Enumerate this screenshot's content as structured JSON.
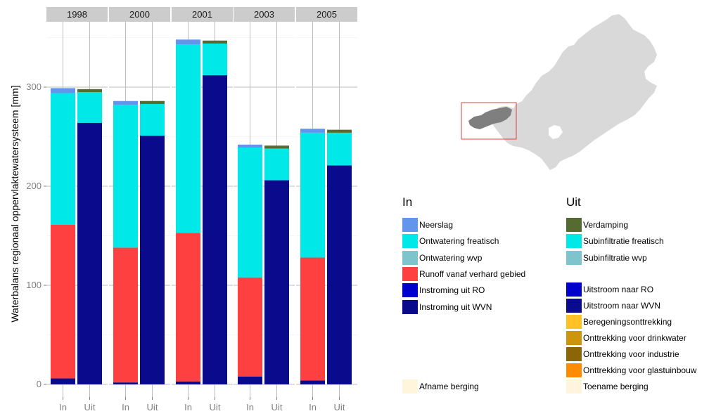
{
  "chart_data": {
    "type": "bar",
    "stacked": true,
    "facets": [
      "1998",
      "2000",
      "2001",
      "2003",
      "2005"
    ],
    "categories": [
      "In",
      "Uit"
    ],
    "ylabel": "Waterbalans regionaal oppervlaktewatersysteem [mm]",
    "xlabel": "",
    "yticks": [
      0,
      100,
      200,
      300
    ],
    "ylim": [
      0,
      360
    ],
    "grid": true,
    "legend_placement": "right",
    "in_series": [
      {
        "name": "Instroming uit WVN",
        "color": "#0a0a8c",
        "values": [
          6,
          2,
          3,
          8,
          4
        ]
      },
      {
        "name": "Instroming uit RO",
        "color": "#0000cc",
        "values": [
          0,
          0,
          0,
          0,
          0
        ]
      },
      {
        "name": "Runoff vanaf verhard gebied",
        "color": "#ff4040",
        "values": [
          155,
          136,
          150,
          100,
          124
        ]
      },
      {
        "name": "Ontwatering wvp",
        "color": "#7ec4cc",
        "values": [
          0,
          0,
          0,
          0,
          0
        ]
      },
      {
        "name": "Ontwatering freatisch",
        "color": "#00e8e8",
        "values": [
          133,
          144,
          190,
          131,
          126
        ]
      },
      {
        "name": "Neerslag",
        "color": "#6495ed",
        "values": [
          5,
          4,
          5,
          3,
          4
        ]
      }
    ],
    "uit_series": [
      {
        "name": "Toename berging",
        "color": "#fff5dc",
        "values": [
          0,
          0,
          0,
          0,
          0
        ]
      },
      {
        "name": "Onttrekking voor glastuinbouw",
        "color": "#ff8c00",
        "values": [
          0,
          0,
          0,
          0,
          0
        ]
      },
      {
        "name": "Onttrekking voor industrie",
        "color": "#8b6508",
        "values": [
          0,
          0,
          0,
          0,
          0
        ]
      },
      {
        "name": "Onttrekking voor drinkwater",
        "color": "#cd950c",
        "values": [
          0,
          0,
          0,
          0,
          0
        ]
      },
      {
        "name": "Beregeningsonttrekking",
        "color": "#ffc125",
        "values": [
          0,
          0,
          0,
          0,
          0
        ]
      },
      {
        "name": "Uitstroom naar WVN",
        "color": "#0a0a8c",
        "values": [
          264,
          251,
          312,
          206,
          221
        ]
      },
      {
        "name": "Uitstroom naar RO",
        "color": "#0000cc",
        "values": [
          0,
          0,
          0,
          0,
          0
        ]
      },
      {
        "name": "Subinfiltratie wvp",
        "color": "#7ec4cc",
        "values": [
          0,
          0,
          0,
          0,
          0
        ]
      },
      {
        "name": "Subinfiltratie freatisch",
        "color": "#00e8e8",
        "values": [
          31,
          32,
          32,
          32,
          33
        ]
      },
      {
        "name": "Verdamping",
        "color": "#556b2f",
        "values": [
          3,
          3,
          3,
          3,
          3
        ]
      }
    ]
  },
  "legend": {
    "in_title": "In",
    "uit_title": "Uit",
    "in_items": [
      {
        "label": "Neerslag",
        "color": "#6495ed"
      },
      {
        "label": "Ontwatering freatisch",
        "color": "#00e8e8"
      },
      {
        "label": "Ontwatering wvp",
        "color": "#7ec4cc"
      },
      {
        "label": "Runoff vanaf verhard gebied",
        "color": "#ff4040"
      },
      {
        "label": "Instroming uit RO",
        "color": "#0000cc"
      },
      {
        "label": "Instroming uit WVN",
        "color": "#0a0a8c"
      }
    ],
    "in_extra": {
      "label": "Afname berging",
      "color": "#fff5dc"
    },
    "uit_items": [
      {
        "label": "Verdamping",
        "color": "#556b2f"
      },
      {
        "label": "Subinfiltratie freatisch",
        "color": "#00e8e8"
      },
      {
        "label": "Subinfiltratie wvp",
        "color": "#7ec4cc"
      }
    ],
    "uit_items2": [
      {
        "label": "Uitstroom naar RO",
        "color": "#0000cc"
      },
      {
        "label": "Uitstroom naar WVN",
        "color": "#0a0a8c"
      },
      {
        "label": "Beregeningsonttrekking",
        "color": "#ffc125"
      },
      {
        "label": "Onttrekking voor drinkwater",
        "color": "#cd950c"
      },
      {
        "label": "Onttrekking voor industrie",
        "color": "#8b6508"
      },
      {
        "label": "Onttrekking voor glastuinbouw",
        "color": "#ff8c00"
      },
      {
        "label": "Toename berging",
        "color": "#fff5dc"
      }
    ]
  },
  "colors": {
    "panel_bg": "#ffffff",
    "grid": "#bebebe",
    "strip_bg": "#cccccc",
    "map_region": "#d9d9d9",
    "map_highlight": "#7f7f7f",
    "map_box": "#e03c3c"
  }
}
